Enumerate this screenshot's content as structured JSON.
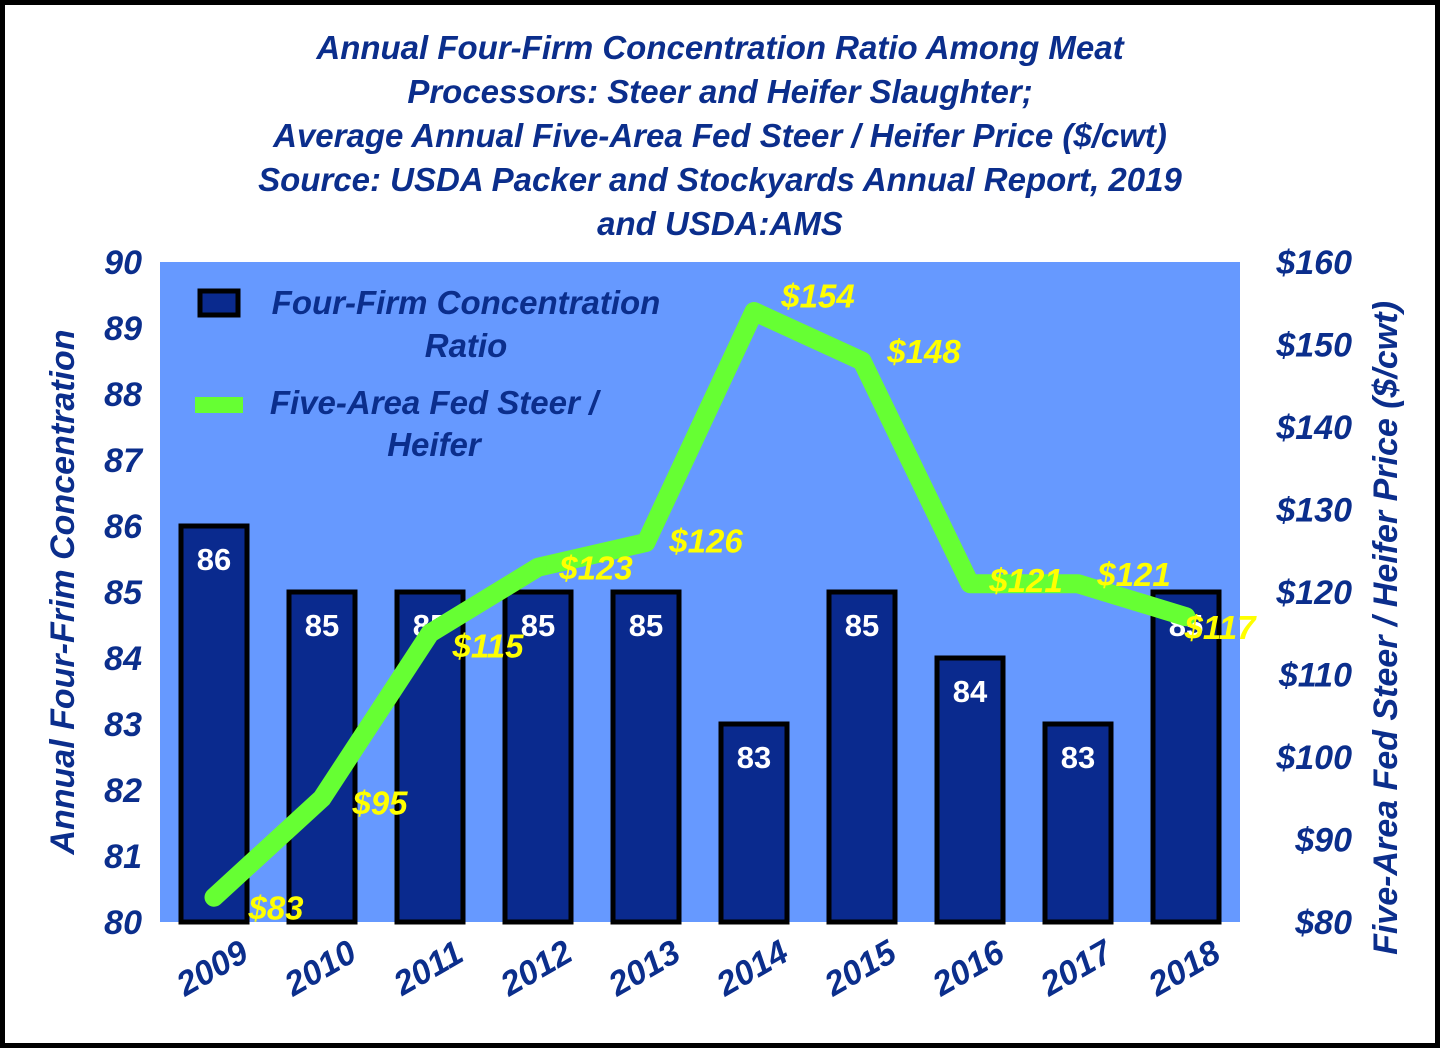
{
  "chart_data": {
    "type": "bar+line",
    "title_lines": [
      "Annual Four-Firm Concentration Ratio Among Meat",
      "Processors:  Steer and Heifer Slaughter;",
      "Average Annual Five-Area Fed Steer / Heifer Price ($/cwt)",
      "Source: USDA Packer and Stockyards Annual Report, 2019",
      "and USDA:AMS"
    ],
    "categories": [
      "2009",
      "2010",
      "2011",
      "2012",
      "2013",
      "2014",
      "2015",
      "2016",
      "2017",
      "2018"
    ],
    "series": [
      {
        "name": "Four-Firm Concentration Ratio",
        "type": "bar",
        "axis": "left",
        "values": [
          86,
          85,
          85,
          85,
          85,
          83,
          85,
          84,
          83,
          85
        ],
        "labels": [
          "86",
          "85",
          "85",
          "85",
          "85",
          "83",
          "85",
          "84",
          "83",
          "85"
        ],
        "color": "#0a2a8e"
      },
      {
        "name": "Five-Area Fed Steer / Heifer",
        "type": "line",
        "axis": "right",
        "values": [
          83,
          95,
          115,
          123,
          126,
          154,
          148,
          121,
          121,
          117
        ],
        "labels": [
          "$83",
          "$95",
          "$115",
          "$123",
          "$126",
          "$154",
          "$148",
          "$121",
          "$121",
          "$117"
        ],
        "color": "#66ff33"
      }
    ],
    "y_left": {
      "label": "Annual Four-Frim Concentration",
      "range": [
        80,
        90
      ],
      "ticks": [
        "80",
        "81",
        "82",
        "83",
        "84",
        "85",
        "86",
        "87",
        "88",
        "89",
        "90"
      ]
    },
    "y_right": {
      "label": "Five-Area Fed Steer / Heifer Price ($/cwt)",
      "range": [
        80,
        160
      ],
      "ticks": [
        "$80",
        "$90",
        "$100",
        "$110",
        "$120",
        "$130",
        "$140",
        "$150",
        "$160"
      ]
    },
    "legend": {
      "position": "top-left",
      "entries": [
        {
          "lines": [
            "Four-Firm Concentration",
            "Ratio"
          ]
        },
        {
          "lines": [
            "Five-Area Fed Steer /",
            "Heifer"
          ]
        }
      ]
    },
    "plot_background": "#6699ff",
    "grid": false
  }
}
